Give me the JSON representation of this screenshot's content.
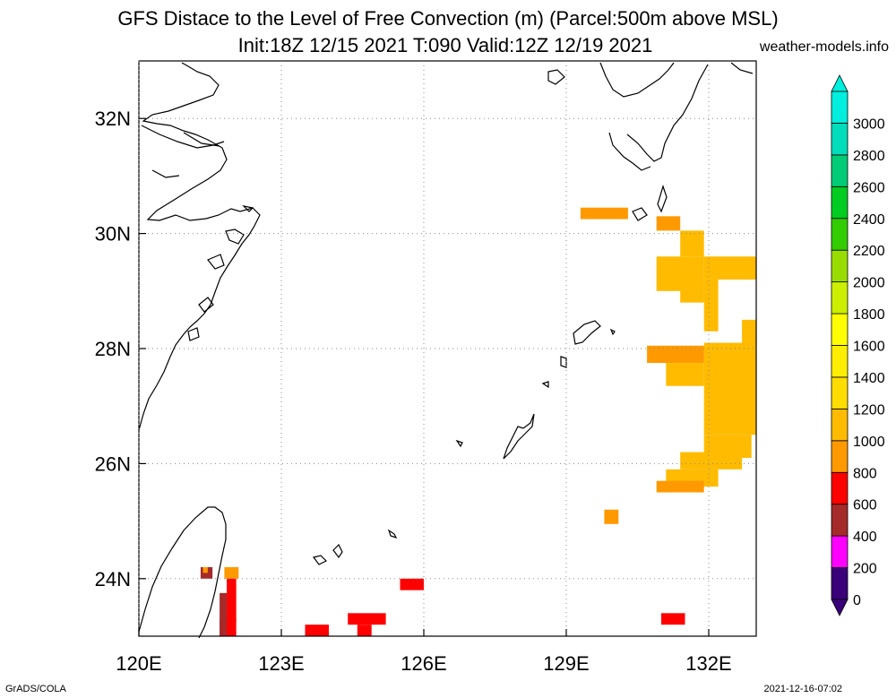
{
  "title_line1": "GFS Distace to the Level of Free Convection (m) (Parcel:500m above MSL)",
  "title_line2": "Init:18Z 12/15 2021 T:090 Valid:12Z 12/19 2021",
  "site": "weather-models.info",
  "footer_left": "GrADS/COLA",
  "footer_right": "2021-12-16-07:02",
  "chart_data": {
    "type": "heatmap",
    "title": "GFS Distace to the Level of Free Convection (m) (Parcel:500m above MSL)",
    "xlabel": "",
    "ylabel": "",
    "xlim": [
      120,
      133
    ],
    "ylim": [
      23,
      33
    ],
    "x_ticks": [
      120,
      123,
      126,
      129,
      132
    ],
    "x_tick_labels": [
      "120E",
      "123E",
      "126E",
      "129E",
      "132E"
    ],
    "y_ticks": [
      24,
      26,
      28,
      30,
      32
    ],
    "y_tick_labels": [
      "24N",
      "26N",
      "28N",
      "30N",
      "32N"
    ],
    "grid": true,
    "legend_position": "right",
    "colorbar": {
      "levels": [
        0,
        200,
        400,
        600,
        800,
        1000,
        1200,
        1400,
        1600,
        1800,
        2000,
        2200,
        2400,
        2600,
        2800,
        3000
      ],
      "labels": [
        "0",
        "200",
        "400",
        "600",
        "800",
        "1000",
        "1200",
        "1400",
        "1600",
        "1800",
        "2000",
        "2200",
        "2400",
        "2600",
        "2800",
        "3000"
      ],
      "colors": [
        "#3a007a",
        "#ff00ff",
        "#a52a2a",
        "#ff0000",
        "#ff9900",
        "#ffbb00",
        "#ffdd00",
        "#ffee00",
        "#ffff00",
        "#ccee00",
        "#99dd00",
        "#33cc00",
        "#00cc22",
        "#00cc77",
        "#00ddbb",
        "#00eedd"
      ],
      "low_color": "#3a007a",
      "high_color": "#00eedd"
    },
    "cells": [
      {
        "lon": [
          129.3,
          130.3
        ],
        "lat": [
          30.25,
          30.45
        ],
        "value": 900
      },
      {
        "lon": [
          130.9,
          131.4
        ],
        "lat": [
          30.05,
          30.3
        ],
        "value": 900
      },
      {
        "lon": [
          131.4,
          131.9
        ],
        "lat": [
          29.6,
          30.05
        ],
        "value": 1000
      },
      {
        "lon": [
          130.9,
          131.9
        ],
        "lat": [
          29.0,
          29.6
        ],
        "value": 1000
      },
      {
        "lon": [
          131.9,
          133.0
        ],
        "lat": [
          29.2,
          29.6
        ],
        "value": 1000
      },
      {
        "lon": [
          131.4,
          131.9
        ],
        "lat": [
          28.8,
          29.2
        ],
        "value": 1000
      },
      {
        "lon": [
          131.9,
          132.2
        ],
        "lat": [
          28.3,
          29.2
        ],
        "value": 1000
      },
      {
        "lon": [
          132.7,
          133.0
        ],
        "lat": [
          28.05,
          28.5
        ],
        "value": 1000
      },
      {
        "lon": [
          131.9,
          133.0
        ],
        "lat": [
          26.5,
          28.1
        ],
        "value": 1050
      },
      {
        "lon": [
          130.7,
          131.9
        ],
        "lat": [
          27.75,
          28.05
        ],
        "value": 950
      },
      {
        "lon": [
          131.1,
          131.9
        ],
        "lat": [
          27.35,
          27.75
        ],
        "value": 1000
      },
      {
        "lon": [
          131.9,
          132.9
        ],
        "lat": [
          26.1,
          26.5
        ],
        "value": 1000
      },
      {
        "lon": [
          131.4,
          132.7
        ],
        "lat": [
          25.9,
          26.2
        ],
        "value": 1000
      },
      {
        "lon": [
          131.1,
          132.2
        ],
        "lat": [
          25.6,
          25.9
        ],
        "value": 1000
      },
      {
        "lon": [
          130.9,
          131.9
        ],
        "lat": [
          25.5,
          25.7
        ],
        "value": 950
      },
      {
        "lon": [
          129.8,
          130.1
        ],
        "lat": [
          24.95,
          25.2
        ],
        "value": 900
      },
      {
        "lon": [
          121.3,
          121.55
        ],
        "lat": [
          24.0,
          24.2
        ],
        "value": 500
      },
      {
        "lon": [
          121.35,
          121.45
        ],
        "lat": [
          24.1,
          24.2
        ],
        "value": 800
      },
      {
        "lon": [
          121.8,
          122.1
        ],
        "lat": [
          24.0,
          24.2
        ],
        "value": 800
      },
      {
        "lon": [
          121.85,
          122.05
        ],
        "lat": [
          23.25,
          24.0
        ],
        "value": 600
      },
      {
        "lon": [
          121.7,
          122.05
        ],
        "lat": [
          23.0,
          23.3
        ],
        "value": 600
      },
      {
        "lon": [
          121.7,
          121.85
        ],
        "lat": [
          23.0,
          23.75
        ],
        "value": 500
      },
      {
        "lon": [
          123.5,
          124.0
        ],
        "lat": [
          23.0,
          23.2
        ],
        "value": 600
      },
      {
        "lon": [
          124.4,
          125.2
        ],
        "lat": [
          23.2,
          23.4
        ],
        "value": 600
      },
      {
        "lon": [
          124.6,
          124.9
        ],
        "lat": [
          23.0,
          23.2
        ],
        "value": 600
      },
      {
        "lon": [
          125.5,
          126.0
        ],
        "lat": [
          23.8,
          24.0
        ],
        "value": 600
      },
      {
        "lon": [
          131.0,
          131.5
        ],
        "lat": [
          23.2,
          23.4
        ],
        "value": 600
      }
    ]
  }
}
